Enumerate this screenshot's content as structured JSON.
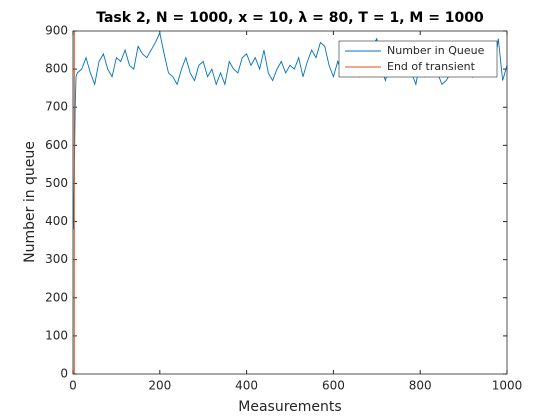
{
  "chart_data": {
    "type": "line",
    "title": "Task 2, N = 1000, x = 10, λ = 80, T = 1, M = 1000",
    "xlabel": "Measurements",
    "ylabel": "Number in queue",
    "xlim": [
      0,
      1000
    ],
    "xticks": [
      0,
      200,
      400,
      600,
      800,
      1000
    ],
    "ylim": [
      0,
      900
    ],
    "yticks": [
      0,
      100,
      200,
      300,
      400,
      500,
      600,
      700,
      800,
      900
    ],
    "legend": "upper right",
    "series": [
      {
        "name": "Number in Queue",
        "color": "#0072bd",
        "x": [
          1,
          3,
          5,
          7,
          10,
          20,
          30,
          40,
          50,
          60,
          70,
          80,
          90,
          100,
          110,
          120,
          130,
          140,
          150,
          160,
          170,
          180,
          190,
          200,
          210,
          220,
          230,
          240,
          250,
          260,
          270,
          280,
          290,
          300,
          310,
          320,
          330,
          340,
          350,
          360,
          370,
          380,
          390,
          400,
          410,
          420,
          430,
          440,
          450,
          460,
          470,
          480,
          490,
          500,
          510,
          520,
          530,
          540,
          550,
          560,
          570,
          580,
          590,
          600,
          610,
          620,
          630,
          640,
          650,
          660,
          670,
          680,
          690,
          700,
          710,
          720,
          730,
          740,
          750,
          760,
          770,
          780,
          790,
          800,
          810,
          820,
          830,
          840,
          850,
          860,
          870,
          880,
          890,
          900,
          910,
          920,
          930,
          940,
          950,
          960,
          970,
          980,
          990,
          1000
        ],
        "values": [
          380,
          520,
          700,
          780,
          790,
          800,
          830,
          790,
          760,
          820,
          840,
          800,
          780,
          830,
          820,
          850,
          810,
          800,
          860,
          840,
          830,
          850,
          870,
          895,
          840,
          790,
          780,
          760,
          800,
          830,
          790,
          770,
          810,
          820,
          780,
          800,
          760,
          790,
          760,
          820,
          800,
          790,
          830,
          840,
          810,
          830,
          800,
          850,
          790,
          770,
          800,
          820,
          790,
          810,
          800,
          830,
          780,
          820,
          850,
          830,
          870,
          860,
          810,
          780,
          820,
          790,
          840,
          830,
          800,
          780,
          810,
          830,
          860,
          880,
          800,
          770,
          820,
          840,
          860,
          790,
          780,
          790,
          760,
          820,
          780,
          800,
          830,
          790,
          760,
          770,
          790,
          780,
          820,
          850,
          810,
          780,
          830,
          800,
          790,
          850,
          800,
          880,
          770,
          810
        ]
      },
      {
        "name": "End of transient",
        "color": "#d95319",
        "x": [
          3,
          3
        ],
        "values": [
          0,
          900
        ]
      }
    ]
  }
}
